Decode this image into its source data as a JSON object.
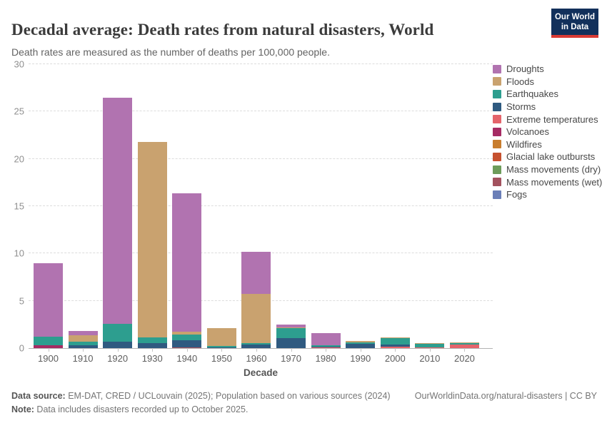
{
  "header": {
    "title": "Decadal average: Death rates from natural disasters, World",
    "subtitle": "Death rates are measured as the number of deaths per 100,000 people.",
    "logo": {
      "line1": "Our World",
      "line2": "in Data",
      "bg_color": "#12305b",
      "accent_color": "#d93a34"
    }
  },
  "chart_data": {
    "type": "bar",
    "stacked": true,
    "title": "Decadal average: Death rates from natural disasters, World",
    "xlabel": "Decade",
    "ylabel": "",
    "ylim": [
      0,
      30
    ],
    "yticks": [
      0,
      5,
      10,
      15,
      20,
      25,
      30
    ],
    "grid": "horizontal-dashed",
    "legend_position": "right",
    "categories": [
      "1900",
      "1910",
      "1920",
      "1930",
      "1940",
      "1950",
      "1960",
      "1970",
      "1980",
      "1990",
      "2000",
      "2010",
      "2020"
    ],
    "series": [
      {
        "name": "Droughts",
        "color": "#b173b0",
        "values": [
          7.75,
          0.45,
          23.85,
          0,
          14.65,
          0,
          4.45,
          0.3,
          1.26,
          0,
          0,
          0,
          0
        ]
      },
      {
        "name": "Floods",
        "color": "#c9a26f",
        "values": [
          0,
          0.7,
          0,
          20.7,
          0.3,
          1.9,
          5.2,
          0.12,
          0.06,
          0.15,
          0.08,
          0.08,
          0.08
        ]
      },
      {
        "name": "Earthquakes",
        "color": "#2d9e8f",
        "values": [
          0.9,
          0.35,
          1.9,
          0.6,
          0.6,
          0.12,
          0.12,
          1.05,
          0.1,
          0.12,
          0.65,
          0.42,
          0.12
        ]
      },
      {
        "name": "Storms",
        "color": "#2f5a80",
        "values": [
          0,
          0.3,
          0.7,
          0.5,
          0.75,
          0.1,
          0.4,
          1.05,
          0.12,
          0.45,
          0.25,
          0,
          0
        ]
      },
      {
        "name": "Extreme temperatures",
        "color": "#e4646b",
        "values": [
          0,
          0,
          0,
          0,
          0,
          0,
          0,
          0,
          0.06,
          0,
          0.15,
          0.04,
          0.4
        ]
      },
      {
        "name": "Volcanoes",
        "color": "#a62b63",
        "values": [
          0.3,
          0,
          0,
          0,
          0,
          0,
          0,
          0,
          0,
          0,
          0,
          0,
          0
        ]
      },
      {
        "name": "Wildfires",
        "color": "#c87d2e",
        "values": [
          0,
          0,
          0,
          0,
          0,
          0,
          0,
          0,
          0,
          0,
          0,
          0,
          0
        ]
      },
      {
        "name": "Glacial lake outbursts",
        "color": "#c6512f",
        "values": [
          0,
          0,
          0,
          0,
          0,
          0,
          0,
          0,
          0,
          0,
          0,
          0,
          0
        ]
      },
      {
        "name": "Mass movements (dry)",
        "color": "#6d9c5a",
        "values": [
          0,
          0,
          0,
          0,
          0,
          0,
          0,
          0,
          0,
          0,
          0,
          0,
          0
        ]
      },
      {
        "name": "Mass movements (wet)",
        "color": "#a3525e",
        "values": [
          0,
          0,
          0,
          0,
          0.05,
          0,
          0,
          0,
          0,
          0,
          0,
          0,
          0
        ]
      },
      {
        "name": "Fogs",
        "color": "#6b7fb8",
        "values": [
          0,
          0,
          0,
          0,
          0,
          0,
          0,
          0,
          0,
          0,
          0,
          0,
          0
        ]
      }
    ],
    "stack_order_bottom_to_top": [
      "Fogs",
      "Mass movements (wet)",
      "Mass movements (dry)",
      "Glacial lake outbursts",
      "Wildfires",
      "Volcanoes",
      "Extreme temperatures",
      "Storms",
      "Earthquakes",
      "Floods",
      "Droughts"
    ]
  },
  "footer": {
    "source_label": "Data source:",
    "source_text": " EM-DAT, CRED / UCLouvain (2025); Population based on various sources (2024)",
    "citation": "OurWorldinData.org/natural-disasters | CC BY",
    "note_label": "Note:",
    "note_text": " Data includes disasters recorded up to October 2025."
  }
}
